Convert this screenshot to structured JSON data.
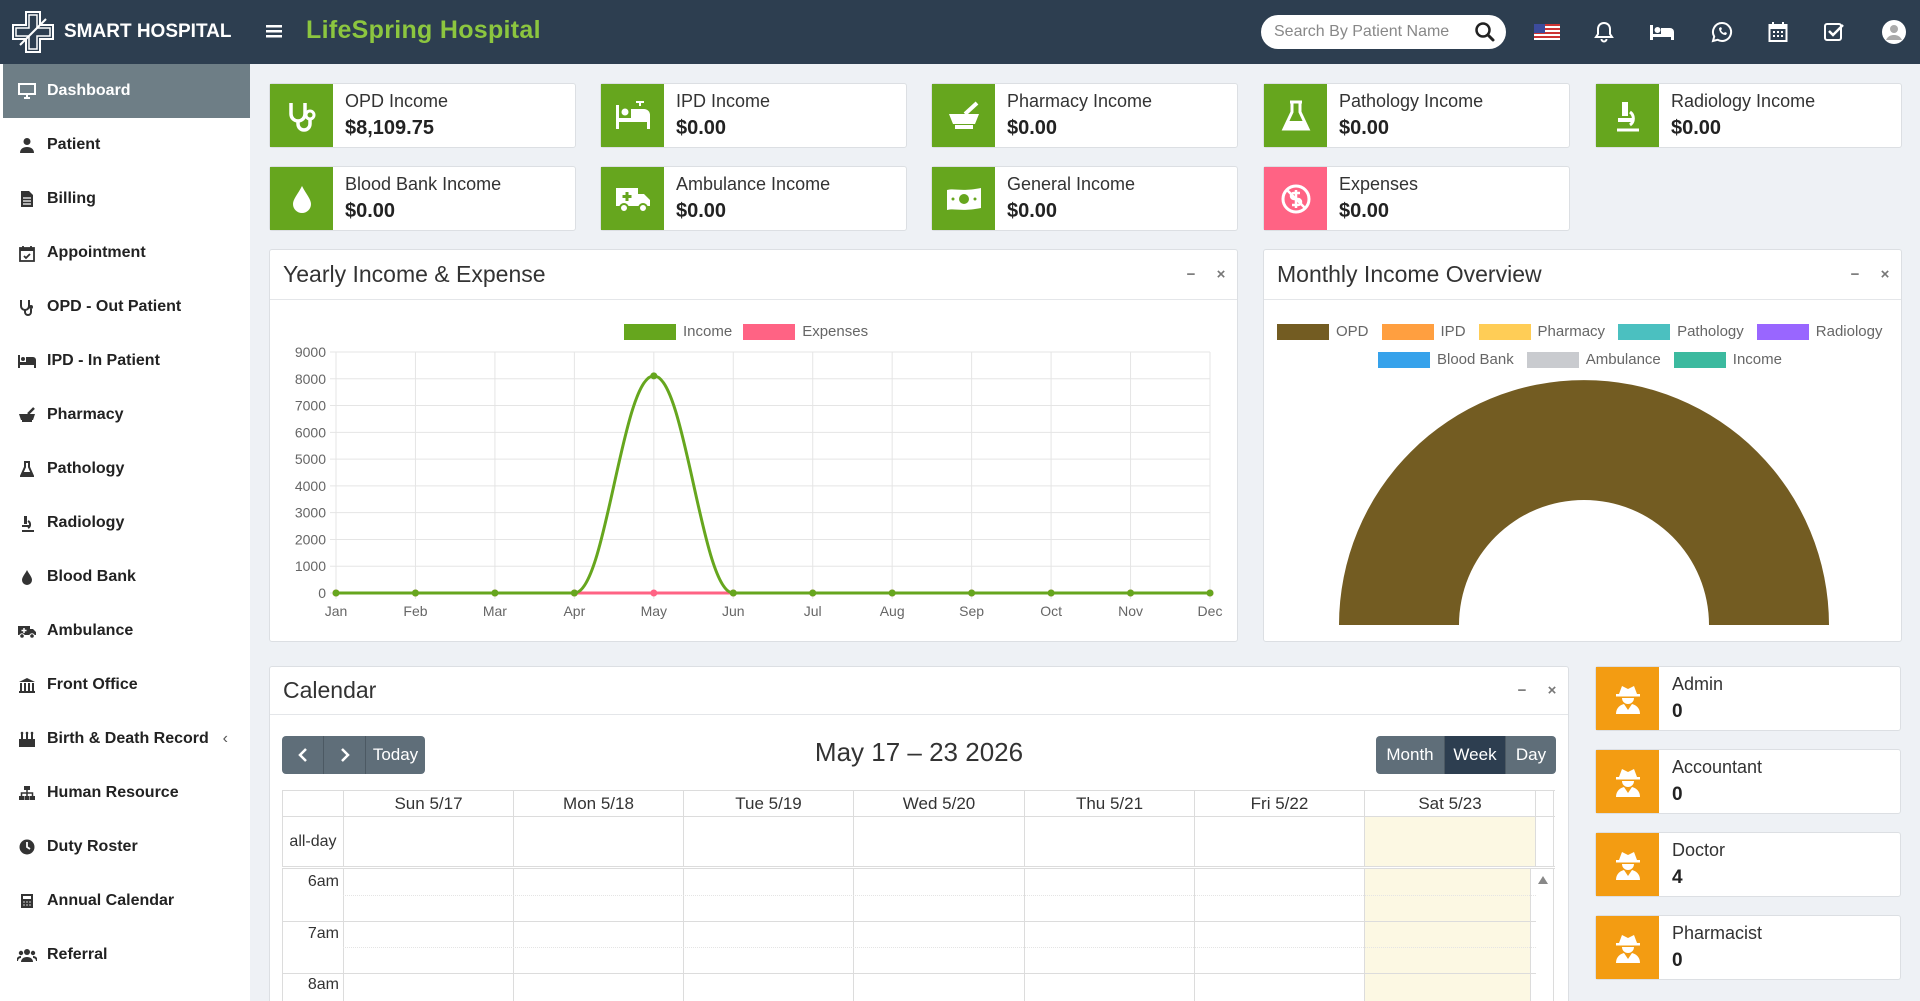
{
  "app": {
    "brand": "SMART HOSPITAL",
    "hospital_name": "LifeSpring Hospital",
    "search_placeholder": "Search By Patient Name"
  },
  "colors": {
    "topbar": "#2d3e50",
    "brand_green": "#8cc63f",
    "card_green": "#66a61e",
    "expense_pink": "#ff6384",
    "role_orange": "#f39c12",
    "opd_brown": "#735c22"
  },
  "topbar_icons": [
    "flag-us-icon",
    "bell-icon",
    "bed-icon",
    "whatsapp-icon",
    "calendar-icon",
    "checkbox-icon",
    "user-avatar-icon"
  ],
  "sidebar": {
    "items": [
      {
        "label": "Dashboard",
        "icon": "monitor-icon",
        "active": true
      },
      {
        "label": "Patient",
        "icon": "user-icon"
      },
      {
        "label": "Billing",
        "icon": "file-invoice-icon"
      },
      {
        "label": "Appointment",
        "icon": "calendar-check-icon"
      },
      {
        "label": "OPD - Out Patient",
        "icon": "stethoscope-icon"
      },
      {
        "label": "IPD - In Patient",
        "icon": "procedure-bed-icon"
      },
      {
        "label": "Pharmacy",
        "icon": "mortar-pestle-icon"
      },
      {
        "label": "Pathology",
        "icon": "flask-icon"
      },
      {
        "label": "Radiology",
        "icon": "microscope-icon"
      },
      {
        "label": "Blood Bank",
        "icon": "drop-icon"
      },
      {
        "label": "Ambulance",
        "icon": "ambulance-icon"
      },
      {
        "label": "Front Office",
        "icon": "building-icon"
      },
      {
        "label": "Birth & Death Record",
        "icon": "birthday-cake-icon",
        "caret": "‹"
      },
      {
        "label": "Human Resource",
        "icon": "sitemap-icon"
      },
      {
        "label": "Duty Roster",
        "icon": "clock-icon"
      },
      {
        "label": "Annual Calendar",
        "icon": "calculator-icon"
      },
      {
        "label": "Referral",
        "icon": "users-icon"
      }
    ]
  },
  "income_cards": [
    {
      "label": "OPD Income",
      "value": "$8,109.75",
      "icon": "stethoscope-icon"
    },
    {
      "label": "IPD Income",
      "value": "$0.00",
      "icon": "procedure-bed-icon"
    },
    {
      "label": "Pharmacy Income",
      "value": "$0.00",
      "icon": "mortar-pestle-icon"
    },
    {
      "label": "Pathology Income",
      "value": "$0.00",
      "icon": "flask-icon"
    },
    {
      "label": "Radiology Income",
      "value": "$0.00",
      "icon": "microscope-icon"
    },
    {
      "label": "Blood Bank Income",
      "value": "$0.00",
      "icon": "drop-icon"
    },
    {
      "label": "Ambulance Income",
      "value": "$0.00",
      "icon": "ambulance-icon"
    },
    {
      "label": "General Income",
      "value": "$0.00",
      "icon": "money-bill-icon"
    },
    {
      "label": "Expenses",
      "value": "$0.00",
      "icon": "expense-icon"
    }
  ],
  "yearly_panel": {
    "title": "Yearly Income & Expense",
    "minimize": "−",
    "close": "×"
  },
  "monthly_panel": {
    "title": "Monthly Income Overview",
    "minimize": "−",
    "close": "×"
  },
  "chart_data": [
    {
      "type": "line",
      "x": [
        "Jan",
        "Feb",
        "Mar",
        "Apr",
        "May",
        "Jun",
        "Jul",
        "Aug",
        "Sep",
        "Oct",
        "Nov",
        "Dec"
      ],
      "series": [
        {
          "name": "Income",
          "values": [
            0,
            0,
            0,
            0,
            8109.75,
            0,
            0,
            0,
            0,
            0,
            0,
            0
          ],
          "color": "#66a61e"
        },
        {
          "name": "Expenses",
          "values": [
            0,
            0,
            0,
            0,
            0,
            0,
            0,
            0,
            0,
            0,
            0,
            0
          ],
          "color": "#ff6384"
        }
      ],
      "ylim": [
        0,
        9000
      ],
      "yticks": [
        "0",
        "1000",
        "2000",
        "3000",
        "4000",
        "5000",
        "6000",
        "7000",
        "8000",
        "9000"
      ],
      "grid": true,
      "legend": "top-center"
    },
    {
      "type": "pie",
      "shape": "half-doughnut",
      "labels": [
        "OPD",
        "IPD",
        "Pharmacy",
        "Pathology",
        "Radiology",
        "Blood Bank",
        "Ambulance",
        "Income"
      ],
      "values": [
        8109.75,
        0,
        0,
        0,
        0,
        0,
        0,
        0
      ],
      "colors": [
        "#735c22",
        "#ff9f40",
        "#ffcd56",
        "#4bc0c0",
        "#9966ff",
        "#36a2eb",
        "#c9cbcf",
        "#3cba9f"
      ],
      "legend": "top"
    }
  ],
  "calendar": {
    "title": "Calendar",
    "range_title": "May 17 – 23 2026",
    "prev": "‹",
    "next": "›",
    "today": "Today",
    "views": [
      "Month",
      "Week",
      "Day"
    ],
    "active_view": "Week",
    "days": [
      "Sun 5/17",
      "Mon 5/18",
      "Tue 5/19",
      "Wed 5/20",
      "Thu 5/21",
      "Fri 5/22",
      "Sat 5/23"
    ],
    "allday_label": "all-day",
    "times": [
      "6am",
      "7am",
      "8am"
    ],
    "minimize": "−",
    "close": "×"
  },
  "staff_cards": [
    {
      "label": "Admin",
      "value": "0"
    },
    {
      "label": "Accountant",
      "value": "0"
    },
    {
      "label": "Doctor",
      "value": "4"
    },
    {
      "label": "Pharmacist",
      "value": "0"
    }
  ]
}
